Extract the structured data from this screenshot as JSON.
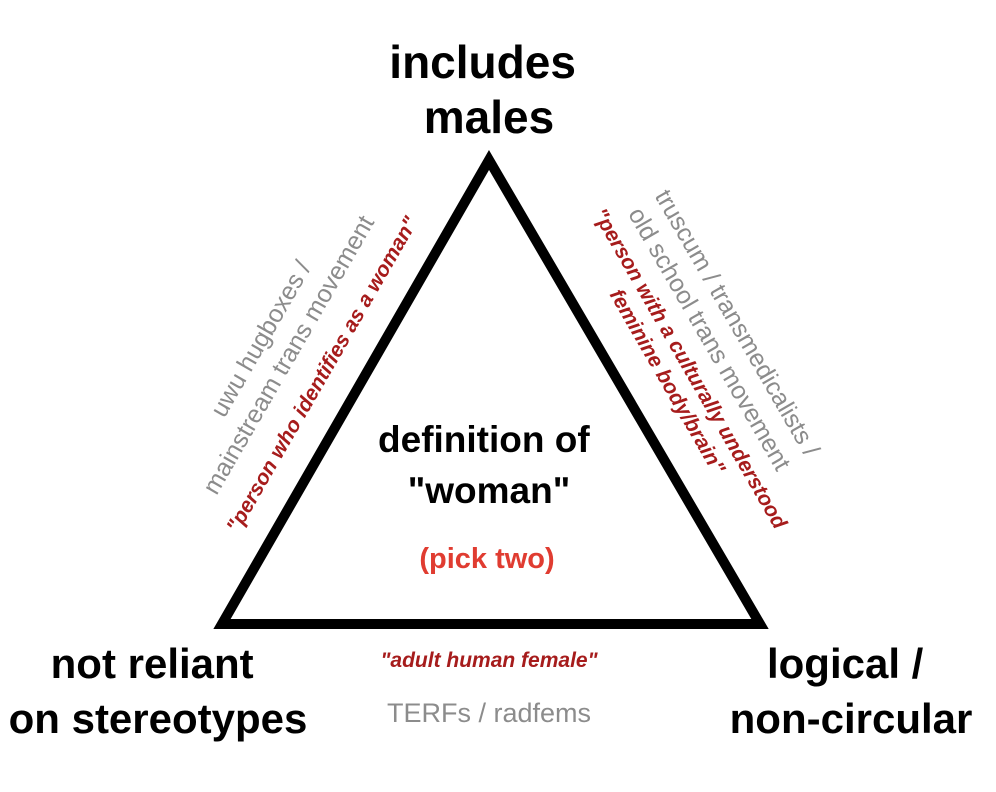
{
  "corners": {
    "top": [
      "includes",
      "males"
    ],
    "bottom_left": [
      "not reliant",
      "on stereotypes"
    ],
    "bottom_right": [
      "logical /",
      "non-circular"
    ]
  },
  "center": {
    "title": [
      "definition of",
      "\"woman\""
    ],
    "subtitle": "(pick two)"
  },
  "sides": {
    "left": {
      "groups": [
        "uwu hugboxes /",
        "mainstream trans movement"
      ],
      "definition": "\"person who identifies as a woman\""
    },
    "right": {
      "groups": [
        "truscum / transmedicalists /",
        "old school trans movement"
      ],
      "definition": [
        "\"person with a culturally understood",
        "feminine body/brain\""
      ]
    },
    "bottom": {
      "definition": "\"adult human female\"",
      "groups": "TERFs / radfems"
    }
  },
  "colors": {
    "triangle": "#000000",
    "definition_text": "#a61c1c",
    "pick_two": "#e03c31",
    "group_text": "#8c8c8c"
  }
}
